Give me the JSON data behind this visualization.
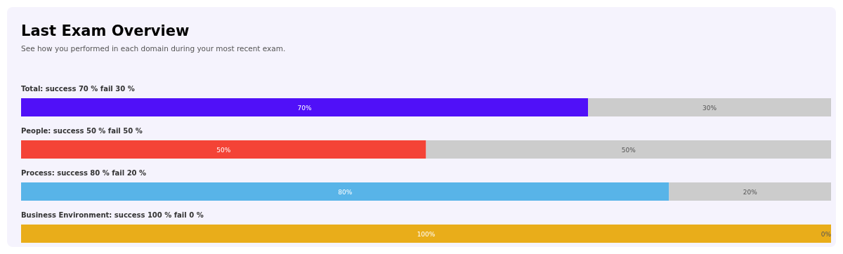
{
  "chart_data": {
    "type": "bar",
    "orientation": "horizontal",
    "stacked": true,
    "title": "Last Exam Overview",
    "subtitle": "See how you performed in each domain during your most recent exam.",
    "categories": [
      "Total: success 70 % fail 30 %",
      "People: success 50 % fail 50 %",
      "Process: success 80 % fail 20 %",
      "Business Environment: success 100 % fail 0 %"
    ],
    "xlim": [
      0,
      100
    ],
    "series": [
      {
        "colors": [
          "#5010f8",
          "#f44336",
          "#58b4e8",
          "#e9ad1a"
        ],
        "values": [
          70,
          50,
          80,
          100
        ],
        "value_labels": [
          "70%",
          "50%",
          "80%",
          "100%"
        ]
      },
      {
        "color": "#cccccc",
        "values": [
          30,
          50,
          20,
          0
        ],
        "value_labels": [
          "30%",
          "50%",
          "20%",
          "0%"
        ]
      }
    ]
  }
}
